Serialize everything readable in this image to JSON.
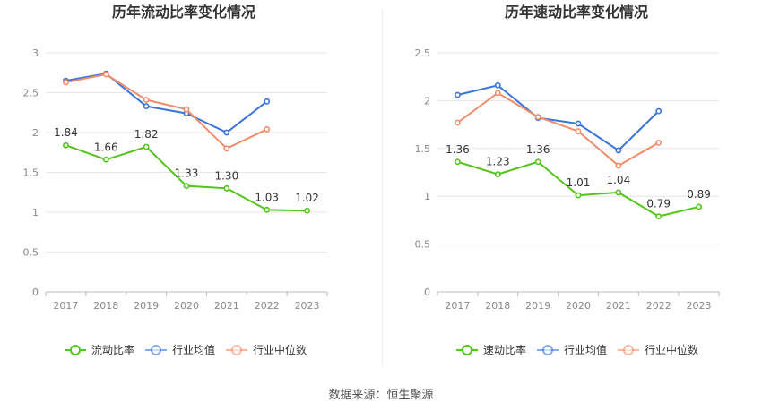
{
  "source_note": "数据来源：恒生聚源",
  "colors": {
    "green": "#52c41a",
    "blue": "#3a74d8",
    "orange": "#f08c6a",
    "grid": "#e6e6e6",
    "axis": "#bbbbbb",
    "tick": "#888888"
  },
  "chart_data": [
    {
      "type": "line",
      "title": "历年流动比率变化情况",
      "categories": [
        "2017",
        "2018",
        "2019",
        "2020",
        "2021",
        "2022",
        "2023"
      ],
      "ylim": [
        0,
        3
      ],
      "yticks": [
        "0",
        "0.5",
        "1",
        "1.5",
        "2",
        "2.5",
        "3"
      ],
      "yticks_values": [
        0,
        0.5,
        1,
        1.5,
        2,
        2.5,
        3
      ],
      "grid": true,
      "legend_position": "bottom",
      "series": [
        {
          "name": "流动比率",
          "color": "#52c41a",
          "values": [
            1.84,
            1.66,
            1.82,
            1.33,
            1.3,
            1.03,
            1.02
          ],
          "labels": [
            "1.84",
            "1.66",
            "1.82",
            "1.33",
            "1.30",
            "1.03",
            "1.02"
          ]
        },
        {
          "name": "行业均值",
          "color": "#3a74d8",
          "values": [
            2.65,
            2.74,
            2.33,
            2.24,
            2.0,
            2.39,
            null
          ]
        },
        {
          "name": "行业中位数",
          "color": "#f08c6a",
          "values": [
            2.63,
            2.73,
            2.41,
            2.29,
            1.8,
            2.04,
            null
          ]
        }
      ]
    },
    {
      "type": "line",
      "title": "历年速动比率变化情况",
      "categories": [
        "2017",
        "2018",
        "2019",
        "2020",
        "2021",
        "2022",
        "2023"
      ],
      "ylim": [
        0,
        2.5
      ],
      "yticks": [
        "0",
        "0.5",
        "1",
        "1.5",
        "2",
        "2.5"
      ],
      "yticks_values": [
        0,
        0.5,
        1,
        1.5,
        2,
        2.5
      ],
      "grid": true,
      "legend_position": "bottom",
      "series": [
        {
          "name": "速动比率",
          "color": "#52c41a",
          "values": [
            1.36,
            1.23,
            1.36,
            1.01,
            1.04,
            0.79,
            0.89
          ],
          "labels": [
            "1.36",
            "1.23",
            "1.36",
            "1.01",
            "1.04",
            "0.79",
            "0.89"
          ]
        },
        {
          "name": "行业均值",
          "color": "#3a74d8",
          "values": [
            2.06,
            2.16,
            1.82,
            1.76,
            1.48,
            1.89,
            null
          ]
        },
        {
          "name": "行业中位数",
          "color": "#f08c6a",
          "values": [
            1.77,
            2.08,
            1.83,
            1.68,
            1.32,
            1.56,
            null
          ]
        }
      ]
    }
  ]
}
